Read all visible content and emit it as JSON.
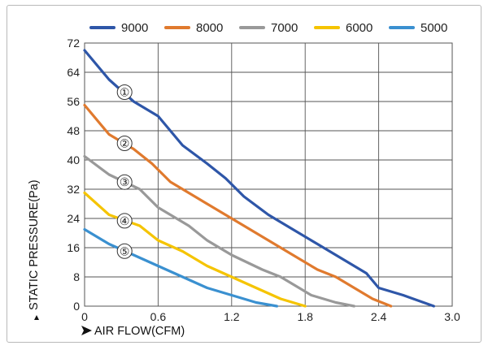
{
  "chart_data": {
    "type": "line",
    "xlabel": "AIR FLOW(CFM)",
    "ylabel": "STATIC PRESSURE(Pa)",
    "xlim": [
      0,
      3.0
    ],
    "ylim": [
      0,
      72
    ],
    "x_ticks": [
      "0",
      "0.6",
      "1.2",
      "1.8",
      "2.4",
      "3.0"
    ],
    "y_ticks": [
      "0",
      "8",
      "16",
      "24",
      "32",
      "40",
      "48",
      "56",
      "64",
      "72"
    ],
    "grid": true,
    "legend_position": "top",
    "series": [
      {
        "name": "9000",
        "color": "#2e56a8",
        "marker": "①",
        "x": [
          0,
          0.2,
          0.4,
          0.6,
          0.8,
          1.0,
          1.15,
          1.3,
          1.5,
          1.7,
          1.9,
          2.1,
          2.3,
          2.4,
          2.6,
          2.85
        ],
        "y": [
          70,
          62,
          56,
          52,
          44,
          39,
          35,
          30,
          25,
          21,
          17,
          13,
          9,
          5,
          3,
          0
        ]
      },
      {
        "name": "8000",
        "color": "#e07a2e",
        "marker": "②",
        "x": [
          0,
          0.2,
          0.4,
          0.55,
          0.7,
          0.9,
          1.1,
          1.3,
          1.5,
          1.7,
          1.9,
          2.05,
          2.2,
          2.35,
          2.5
        ],
        "y": [
          55,
          47,
          43,
          39,
          34,
          30,
          26,
          22,
          18,
          14,
          10,
          8,
          5,
          2,
          0
        ]
      },
      {
        "name": "7000",
        "color": "#999999",
        "marker": "③",
        "x": [
          0,
          0.2,
          0.45,
          0.6,
          0.85,
          1.0,
          1.2,
          1.45,
          1.6,
          1.75,
          1.85,
          2.05,
          2.2
        ],
        "y": [
          41,
          36,
          32,
          27,
          22,
          18,
          14,
          10,
          8,
          5,
          3,
          1,
          0
        ]
      },
      {
        "name": "6000",
        "color": "#f5c400",
        "marker": "④",
        "x": [
          0,
          0.2,
          0.45,
          0.6,
          0.8,
          1.0,
          1.2,
          1.4,
          1.6,
          1.8
        ],
        "y": [
          31,
          25,
          22,
          18,
          15,
          11,
          8,
          5,
          2,
          0
        ]
      },
      {
        "name": "5000",
        "color": "#3a90d0",
        "marker": "⑤",
        "x": [
          0,
          0.2,
          0.4,
          0.6,
          0.8,
          1.0,
          1.2,
          1.4,
          1.57
        ],
        "y": [
          21,
          17,
          14,
          11,
          8,
          5,
          3,
          1,
          0
        ]
      }
    ]
  }
}
